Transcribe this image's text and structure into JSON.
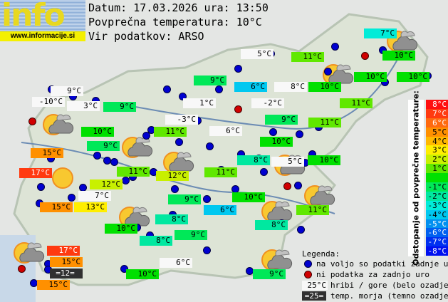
{
  "logo": {
    "word": "info",
    "url": "www.informacije.si"
  },
  "header": {
    "date_line": "Datum: 17.03.2026 ura: 13:50",
    "avg_line": "Povprečna temperatura: 10°C",
    "source_line": "Vir podatkov: ARSO"
  },
  "average_temp": 10,
  "scale": {
    "title": "Odstopanje od povprečne temperature:",
    "steps": [
      {
        "label": "8°C",
        "color": "#ff1010"
      },
      {
        "label": "7°C",
        "color": "#ff3a10"
      },
      {
        "label": "6°C",
        "color": "#ff6a10"
      },
      {
        "label": "5°C",
        "color": "#ff9000"
      },
      {
        "label": "4°C",
        "color": "#ffb800"
      },
      {
        "label": "3°C",
        "color": "#ffee00"
      },
      {
        "label": "2°C",
        "color": "#c8f000"
      },
      {
        "label": "1°C",
        "color": "#60e800"
      },
      {
        "label": "",
        "color": "#00e000"
      },
      {
        "label": "-1°C",
        "color": "#00e858"
      },
      {
        "label": "-2°C",
        "color": "#00e8a0"
      },
      {
        "label": "-3°C",
        "color": "#00ecd8"
      },
      {
        "label": "-4°C",
        "color": "#00c8f0"
      },
      {
        "label": "-5°C",
        "color": "#0090f0"
      },
      {
        "label": "-6°C",
        "color": "#0060f0"
      },
      {
        "label": "-7°C",
        "color": "#0030f0"
      },
      {
        "label": "-8°C",
        "color": "#0010f0"
      }
    ]
  },
  "legend": {
    "title": "Legenda:",
    "blue_dot": "na voljo so podatki zadnje ure",
    "red_dot": "ni podatka za zadnjo uro",
    "mountain_sample": "25°C",
    "mountain_text": "hribi / gore (belo ozadje)",
    "sea_sample": "=25=",
    "sea_text": "temp. morja (temno ozadje)"
  },
  "stations": [
    {
      "t": "7°C",
      "kind": "valley"
    },
    {
      "t": "5°C",
      "kind": "mountain"
    },
    {
      "t": "11°C",
      "kind": "valley"
    },
    {
      "t": "10°C",
      "kind": "valley"
    },
    {
      "t": "9°C",
      "kind": "valley"
    },
    {
      "t": "6°C",
      "kind": "valley"
    },
    {
      "t": "8°C",
      "kind": "mountain"
    },
    {
      "t": "10°C",
      "kind": "valley"
    },
    {
      "t": "10°C",
      "kind": "valley"
    },
    {
      "t": "10°C",
      "kind": "valley"
    },
    {
      "t": "9°C",
      "kind": "mountain"
    },
    {
      "t": "-10°C",
      "kind": "mountain"
    },
    {
      "t": "3°C",
      "kind": "mountain"
    },
    {
      "t": "1°C",
      "kind": "mountain"
    },
    {
      "t": "-2°C",
      "kind": "mountain"
    },
    {
      "t": "9°C",
      "kind": "valley"
    },
    {
      "t": "11°C",
      "kind": "valley"
    },
    {
      "t": "9°C",
      "kind": "valley"
    },
    {
      "t": "-3°C",
      "kind": "mountain"
    },
    {
      "t": "11°C",
      "kind": "valley"
    },
    {
      "t": "10°C",
      "kind": "valley"
    },
    {
      "t": "11°C",
      "kind": "valley"
    },
    {
      "t": "6°C",
      "kind": "mountain"
    },
    {
      "t": "10°C",
      "kind": "valley"
    },
    {
      "t": "9°C",
      "kind": "valley"
    },
    {
      "t": "15°C",
      "kind": "valley"
    },
    {
      "t": "10°C",
      "kind": "valley"
    },
    {
      "t": "8°C",
      "kind": "valley"
    },
    {
      "t": "5°C",
      "kind": "mountain"
    },
    {
      "t": "17°C",
      "kind": "valley"
    },
    {
      "t": "11°C",
      "kind": "valley"
    },
    {
      "t": "12°C",
      "kind": "valley"
    },
    {
      "t": "11°C",
      "kind": "valley"
    },
    {
      "t": "12°C",
      "kind": "valley"
    },
    {
      "t": "10°C",
      "kind": "valley"
    },
    {
      "t": "9°C",
      "kind": "valley"
    },
    {
      "t": "6°C",
      "kind": "valley"
    },
    {
      "t": "11°C",
      "kind": "valley"
    },
    {
      "t": "7°C",
      "kind": "mountain"
    },
    {
      "t": "15°C",
      "kind": "valley"
    },
    {
      "t": "13°C",
      "kind": "valley"
    },
    {
      "t": "8°C",
      "kind": "valley"
    },
    {
      "t": "8°C",
      "kind": "valley"
    },
    {
      "t": "10°C",
      "kind": "valley"
    },
    {
      "t": "9°C",
      "kind": "valley"
    },
    {
      "t": "8°C",
      "kind": "valley"
    },
    {
      "t": "17°C",
      "kind": "valley"
    },
    {
      "t": "15°C",
      "kind": "valley"
    },
    {
      "t": "=12=",
      "kind": "sea"
    },
    {
      "t": "15°C",
      "kind": "valley"
    },
    {
      "t": "6°C",
      "kind": "mountain"
    },
    {
      "t": "10°C",
      "kind": "valley"
    },
    {
      "t": "9°C",
      "kind": "valley"
    }
  ],
  "weather_icons": [
    "sun-cloud",
    "sun-cloud",
    "sun-cloud",
    "sun-cloud",
    "sun-cloud",
    "sun-cloud",
    "sun-cloud",
    "sun-cloud",
    "sun",
    "sun-cloud",
    "sun-cloud",
    "sun-cloud"
  ],
  "colors": {
    "mountain_bg": "#f8f8f8",
    "sea_bg": "#303030",
    "blue_dot": "#0000d0",
    "red_dot": "#d00000"
  }
}
